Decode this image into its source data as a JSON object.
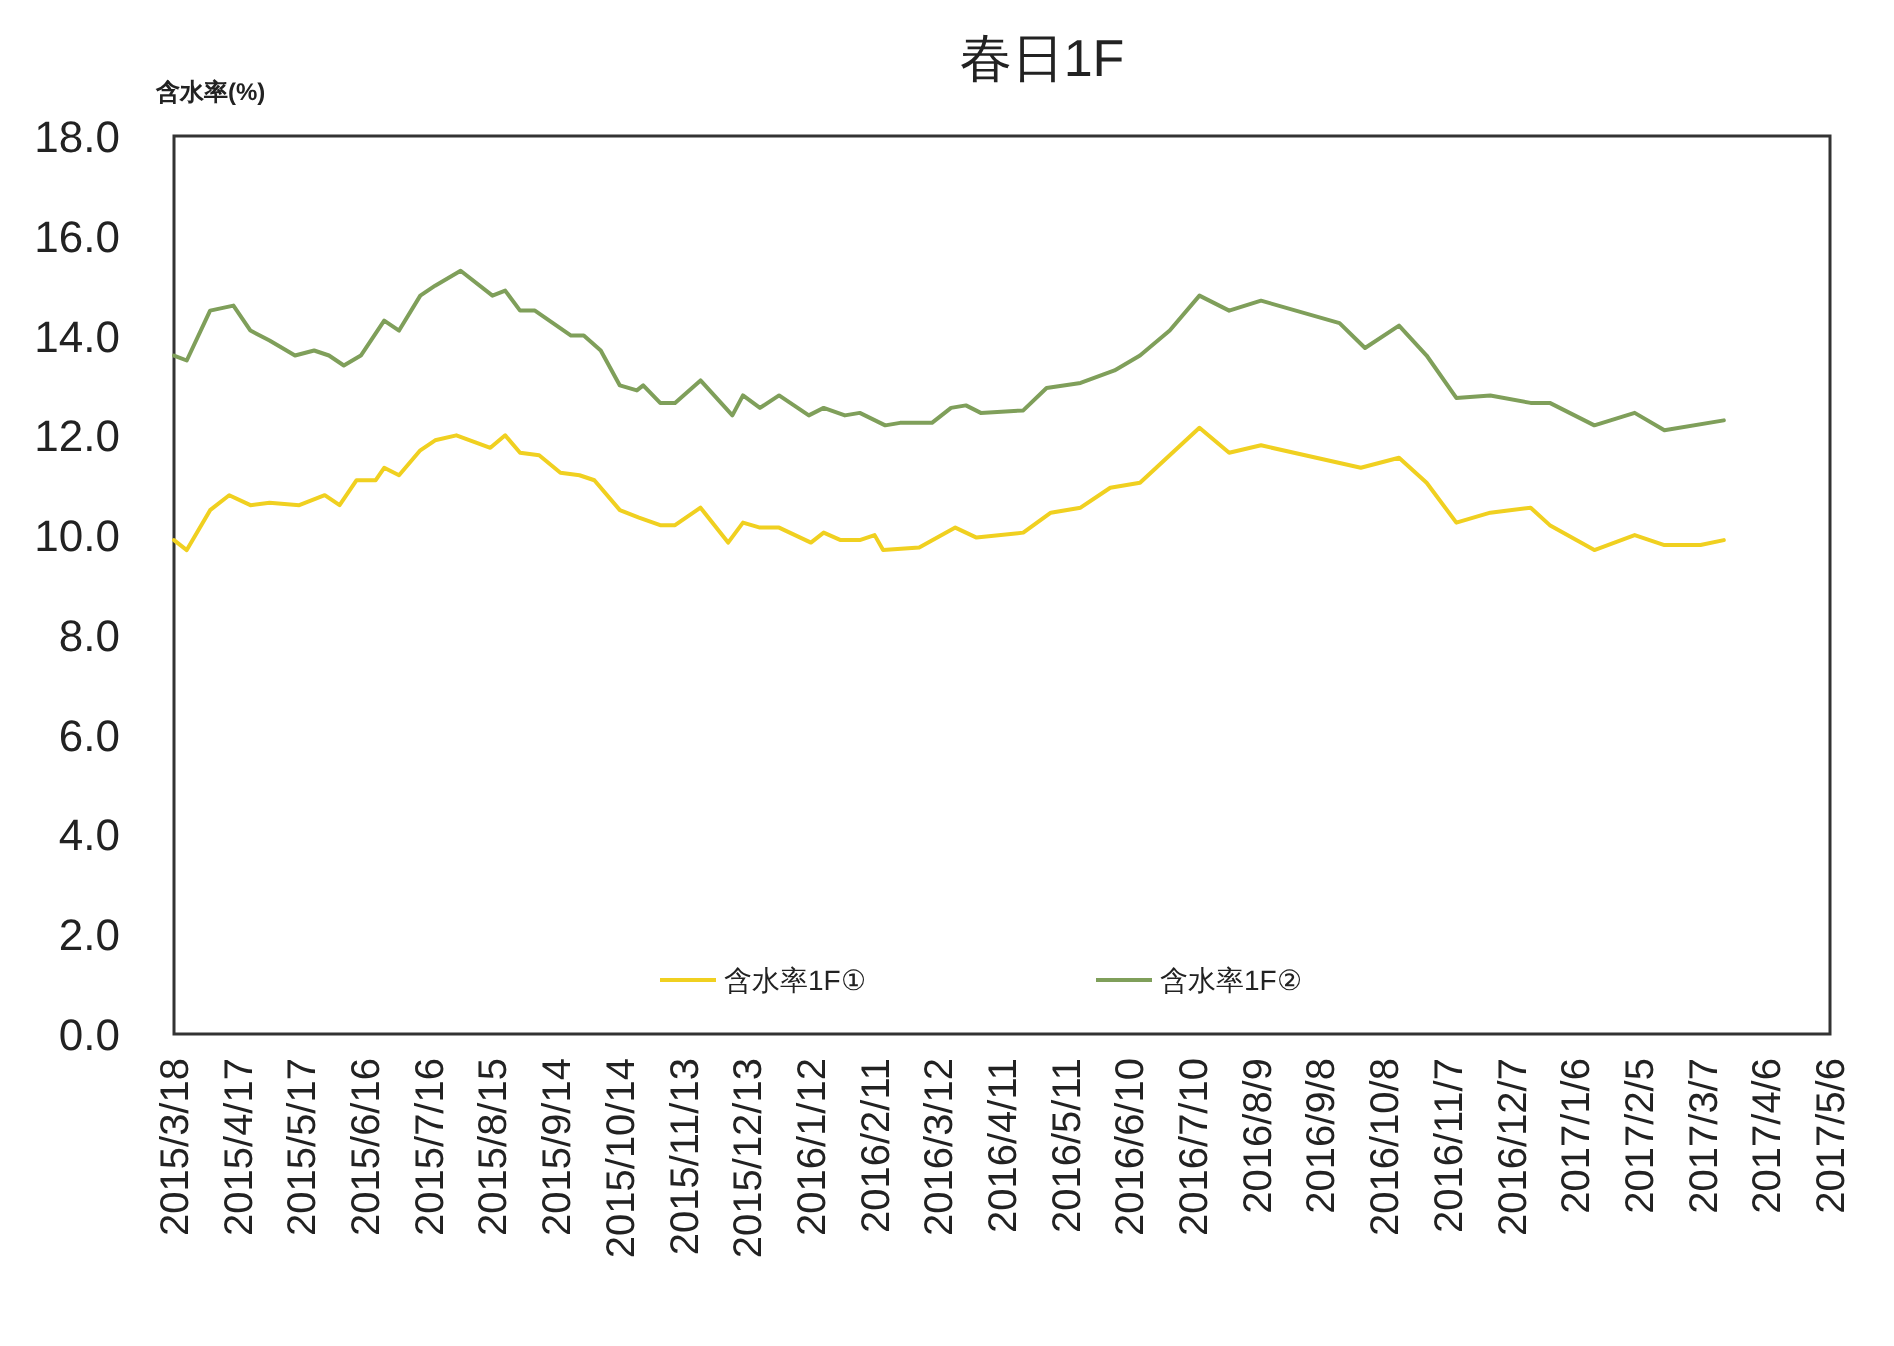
{
  "chart_data": {
    "type": "line",
    "title": "春日1F",
    "ylabel": "含水率(%)",
    "legend": "bottom",
    "grid": false,
    "marker": "none",
    "line_style": "solid",
    "xlim": [
      "2015-03-18",
      "2017-05-06"
    ],
    "xticks": [
      {
        "value": "2015-03-18",
        "label": "2015/3/18"
      },
      {
        "value": "2015-04-17",
        "label": "2015/4/17"
      },
      {
        "value": "2015-05-17",
        "label": "2015/5/17"
      },
      {
        "value": "2015-06-16",
        "label": "2015/6/16"
      },
      {
        "value": "2015-07-16",
        "label": "2015/7/16"
      },
      {
        "value": "2015-08-15",
        "label": "2015/8/15"
      },
      {
        "value": "2015-09-14",
        "label": "2015/9/14"
      },
      {
        "value": "2015-10-14",
        "label": "2015/10/14"
      },
      {
        "value": "2015-11-13",
        "label": "2015/11/13"
      },
      {
        "value": "2015-12-13",
        "label": "2015/12/13"
      },
      {
        "value": "2016-01-12",
        "label": "2016/1/12"
      },
      {
        "value": "2016-02-11",
        "label": "2016/2/11"
      },
      {
        "value": "2016-03-12",
        "label": "2016/3/12"
      },
      {
        "value": "2016-04-11",
        "label": "2016/4/11"
      },
      {
        "value": "2016-05-11",
        "label": "2016/5/11"
      },
      {
        "value": "2016-06-10",
        "label": "2016/6/10"
      },
      {
        "value": "2016-07-10",
        "label": "2016/7/10"
      },
      {
        "value": "2016-08-09",
        "label": "2016/8/9"
      },
      {
        "value": "2016-09-08",
        "label": "2016/9/8"
      },
      {
        "value": "2016-10-08",
        "label": "2016/10/8"
      },
      {
        "value": "2016-11-07",
        "label": "2016/11/7"
      },
      {
        "value": "2016-12-07",
        "label": "2016/12/7"
      },
      {
        "value": "2017-01-06",
        "label": "2017/1/6"
      },
      {
        "value": "2017-02-05",
        "label": "2017/2/5"
      },
      {
        "value": "2017-03-07",
        "label": "2017/3/7"
      },
      {
        "value": "2017-04-06",
        "label": "2017/4/6"
      },
      {
        "value": "2017-05-06",
        "label": "2017/5/6"
      }
    ],
    "ylim": [
      0,
      18
    ],
    "yticks": [
      {
        "value": 0,
        "label": "0.0"
      },
      {
        "value": 2,
        "label": "2.0"
      },
      {
        "value": 4,
        "label": "4.0"
      },
      {
        "value": 6,
        "label": "6.0"
      },
      {
        "value": 8,
        "label": "8.0"
      },
      {
        "value": 10,
        "label": "10.0"
      },
      {
        "value": 12,
        "label": "12.0"
      },
      {
        "value": 14,
        "label": "14.0"
      },
      {
        "value": 16,
        "label": "16.0"
      },
      {
        "value": 18,
        "label": "18.0"
      }
    ],
    "series": [
      {
        "name": "含水率1F①",
        "color": "#f0d020",
        "x": [
          "2015-03-18",
          "2015-03-24",
          "2015-04-04",
          "2015-04-13",
          "2015-04-23",
          "2015-05-02",
          "2015-05-16",
          "2015-05-28",
          "2015-06-04",
          "2015-06-12",
          "2015-06-21",
          "2015-06-25",
          "2015-07-02",
          "2015-07-12",
          "2015-07-19",
          "2015-07-29",
          "2015-08-14",
          "2015-08-21",
          "2015-08-28",
          "2015-09-06",
          "2015-09-16",
          "2015-09-25",
          "2015-10-02",
          "2015-10-14",
          "2015-10-23",
          "2015-11-02",
          "2015-11-09",
          "2015-11-21",
          "2015-12-04",
          "2015-12-11",
          "2015-12-19",
          "2015-12-28",
          "2016-01-12",
          "2016-01-18",
          "2016-01-26",
          "2016-02-04",
          "2016-02-11",
          "2016-02-15",
          "2016-03-03",
          "2016-03-20",
          "2016-03-30",
          "2016-04-21",
          "2016-05-04",
          "2016-05-18",
          "2016-06-01",
          "2016-06-15",
          "2016-07-13",
          "2016-07-27",
          "2016-08-11",
          "2016-09-27",
          "2016-10-15",
          "2016-10-28",
          "2016-11-11",
          "2016-11-27",
          "2016-12-16",
          "2016-12-25",
          "2017-01-15",
          "2017-02-03",
          "2017-02-17",
          "2017-03-06",
          "2017-03-17"
        ],
        "values": [
          9.9,
          9.7,
          10.5,
          10.8,
          10.6,
          10.65,
          10.6,
          10.8,
          10.6,
          11.1,
          11.1,
          11.35,
          11.2,
          11.7,
          11.9,
          12.0,
          11.75,
          12.0,
          11.65,
          11.6,
          11.25,
          11.2,
          11.1,
          10.5,
          10.35,
          10.2,
          10.2,
          10.55,
          9.85,
          10.25,
          10.15,
          10.15,
          9.85,
          10.05,
          9.9,
          9.9,
          10.0,
          9.7,
          9.75,
          10.15,
          9.95,
          10.05,
          10.45,
          10.55,
          10.95,
          11.05,
          12.15,
          11.65,
          11.8,
          11.35,
          11.55,
          11.05,
          10.25,
          10.45,
          10.55,
          10.2,
          9.7,
          10.0,
          9.8,
          9.8,
          9.9
        ]
      },
      {
        "name": "含水率1F②",
        "color": "#7f9f5a",
        "x": [
          "2015-03-18",
          "2015-03-24",
          "2015-04-04",
          "2015-04-15",
          "2015-04-23",
          "2015-05-02",
          "2015-05-14",
          "2015-05-23",
          "2015-05-30",
          "2015-06-06",
          "2015-06-14",
          "2015-06-25",
          "2015-07-02",
          "2015-07-12",
          "2015-07-19",
          "2015-07-31",
          "2015-08-15",
          "2015-08-21",
          "2015-08-28",
          "2015-09-04",
          "2015-09-21",
          "2015-09-27",
          "2015-10-05",
          "2015-10-14",
          "2015-10-22",
          "2015-10-25",
          "2015-11-02",
          "2015-11-09",
          "2015-11-21",
          "2015-12-06",
          "2015-12-11",
          "2015-12-19",
          "2015-12-28",
          "2016-01-11",
          "2016-01-18",
          "2016-01-28",
          "2016-02-04",
          "2016-02-16",
          "2016-02-23",
          "2016-03-09",
          "2016-03-18",
          "2016-03-25",
          "2016-04-01",
          "2016-04-21",
          "2016-05-02",
          "2016-05-18",
          "2016-06-03",
          "2016-06-15",
          "2016-06-29",
          "2016-07-13",
          "2016-07-27",
          "2016-08-11",
          "2016-09-17",
          "2016-09-29",
          "2016-10-15",
          "2016-10-28",
          "2016-11-11",
          "2016-11-27",
          "2016-12-16",
          "2016-12-25",
          "2017-01-15",
          "2017-02-03",
          "2017-02-17",
          "2017-03-17"
        ],
        "values": [
          13.6,
          13.5,
          14.5,
          14.6,
          14.1,
          13.9,
          13.6,
          13.7,
          13.6,
          13.4,
          13.6,
          14.3,
          14.1,
          14.8,
          15.0,
          15.3,
          14.8,
          14.9,
          14.5,
          14.5,
          14.0,
          14.0,
          13.7,
          13.0,
          12.9,
          13.0,
          12.65,
          12.65,
          13.1,
          12.4,
          12.8,
          12.55,
          12.8,
          12.4,
          12.55,
          12.4,
          12.45,
          12.2,
          12.25,
          12.25,
          12.55,
          12.6,
          12.45,
          12.5,
          12.95,
          13.05,
          13.3,
          13.6,
          14.1,
          14.8,
          14.5,
          14.7,
          14.25,
          13.75,
          14.2,
          13.6,
          12.75,
          12.8,
          12.65,
          12.65,
          12.2,
          12.45,
          12.1,
          12.3
        ]
      }
    ]
  }
}
